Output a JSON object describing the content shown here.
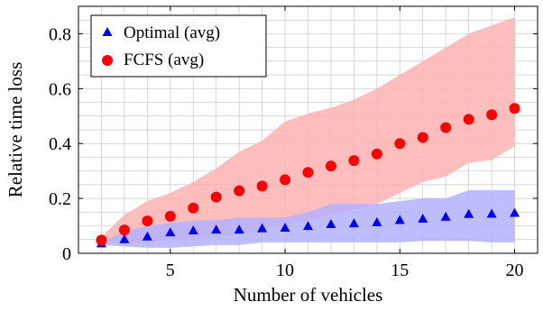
{
  "chart_data": {
    "type": "scatter",
    "xlabel": "Number of vehicles",
    "ylabel": "Relative time loss",
    "xlim": [
      1,
      21
    ],
    "ylim": [
      0,
      0.9
    ],
    "xticks": [
      5,
      10,
      15,
      20
    ],
    "yticks": [
      0,
      0.2,
      0.4,
      0.6,
      0.8
    ],
    "ytick_labels": [
      "0",
      "0.2",
      "0.4",
      "0.6",
      "0.8"
    ],
    "grid": true,
    "legend_position": "top-left",
    "x": [
      2,
      3,
      4,
      5,
      6,
      7,
      8,
      9,
      10,
      11,
      12,
      13,
      14,
      15,
      16,
      17,
      18,
      19,
      20
    ],
    "series": [
      {
        "name": "Optimal (avg)",
        "marker": "triangle",
        "color": "#0000ff",
        "band_color": "#b3b3ff",
        "values": [
          0.035,
          0.05,
          0.06,
          0.075,
          0.082,
          0.085,
          0.085,
          0.09,
          0.092,
          0.098,
          0.105,
          0.108,
          0.112,
          0.12,
          0.125,
          0.132,
          0.142,
          0.143,
          0.146
        ],
        "band_low": [
          0.03,
          0.025,
          0.02,
          0.02,
          0.025,
          0.03,
          0.03,
          0.04,
          0.04,
          0.04,
          0.04,
          0.04,
          0.04,
          0.04,
          0.045,
          0.045,
          0.045,
          0.04,
          0.04
        ],
        "band_high": [
          0.04,
          0.08,
          0.1,
          0.11,
          0.12,
          0.12,
          0.13,
          0.13,
          0.13,
          0.15,
          0.18,
          0.18,
          0.18,
          0.19,
          0.2,
          0.2,
          0.23,
          0.23,
          0.23
        ]
      },
      {
        "name": "FCFS (avg)",
        "marker": "circle",
        "color": "#ff0000",
        "band_color": "#ffb3b3",
        "values": [
          0.048,
          0.085,
          0.118,
          0.135,
          0.165,
          0.205,
          0.228,
          0.245,
          0.268,
          0.295,
          0.318,
          0.338,
          0.362,
          0.4,
          0.422,
          0.458,
          0.488,
          0.505,
          0.528
        ],
        "band_low": [
          0.04,
          0.04,
          0.04,
          0.05,
          0.05,
          0.06,
          0.07,
          0.09,
          0.1,
          0.12,
          0.14,
          0.16,
          0.18,
          0.22,
          0.26,
          0.28,
          0.33,
          0.34,
          0.39
        ],
        "band_high": [
          0.06,
          0.14,
          0.19,
          0.22,
          0.26,
          0.31,
          0.37,
          0.41,
          0.48,
          0.51,
          0.53,
          0.56,
          0.6,
          0.65,
          0.7,
          0.75,
          0.8,
          0.83,
          0.86
        ]
      }
    ]
  }
}
